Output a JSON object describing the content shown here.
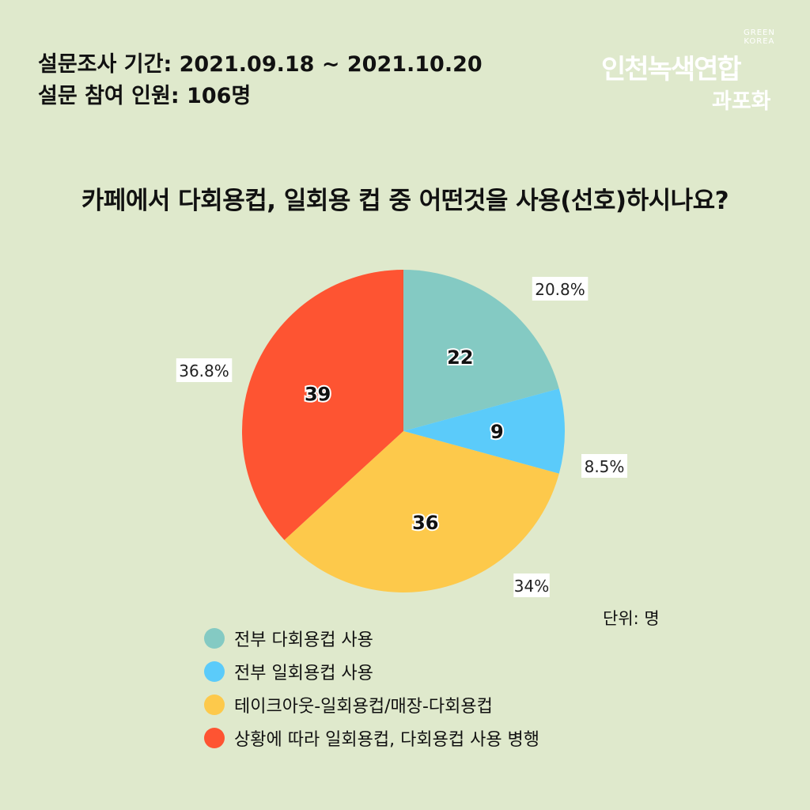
{
  "survey": {
    "period": "설문조사 기간: 2021.09.18 ~ 2021.10.20",
    "participants": "설문 참여 인원: 106명"
  },
  "logo": {
    "green_korea": [
      "GREEN",
      "KOREA"
    ],
    "org_name": "인천녹색연합",
    "team_name": "과포화"
  },
  "unit_label": "단위: 명",
  "chart_data": {
    "type": "pie",
    "title": "카페에서 다회용컵, 일회용 컵 중 어떤것을 사용(선호)하시나요?",
    "legend_position": "bottom",
    "start_angle_deg": 0,
    "direction": "clockwise",
    "slices": [
      {
        "label": "전부 다회용컵 사용",
        "value": 22,
        "percent": "20.8%",
        "color": "#84cac3"
      },
      {
        "label": "전부 일회용컵 사용",
        "value": 9,
        "percent": "8.5%",
        "color": "#5bcbfa"
      },
      {
        "label": "테이크아웃-일회용컵/매장-다회용컵",
        "value": 36,
        "percent": "34%",
        "color": "#fdc94b"
      },
      {
        "label": "상황에 따라 일회용컵, 다회용컵 사용 병행",
        "value": 39,
        "percent": "36.8%",
        "color": "#fe5432"
      }
    ]
  }
}
